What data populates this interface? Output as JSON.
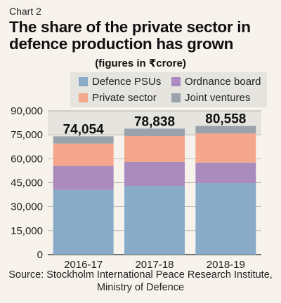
{
  "kicker": "Chart 2",
  "title": "The share of the private sector in defence production has grown",
  "subtitle": "(figures in ₹crore)",
  "source": "Source: Stockholm International Peace Research Institute, Ministry of Defence",
  "colors": {
    "background": "#f7f3ec",
    "plot_band": "#e6e4df",
    "defence_psus": "#8aabc8",
    "ordnance_board": "#a98bbd",
    "private_sector": "#f4a78c",
    "joint_ventures": "#9aa3ab"
  },
  "chart_data": {
    "type": "bar",
    "stacked": true,
    "categories": [
      "2016-17",
      "2017-18",
      "2018-19"
    ],
    "totals": [
      "74,054",
      "78,838",
      "80,558"
    ],
    "series": [
      {
        "name": "Defence PSUs",
        "color": "#8aabc8",
        "values": [
          40500,
          43000,
          44800
        ]
      },
      {
        "name": "Ordnance board",
        "color": "#a98bbd",
        "values": [
          15000,
          15000,
          12800
        ]
      },
      {
        "name": "Private sector",
        "color": "#f4a78c",
        "values": [
          14000,
          16200,
          18200
        ]
      },
      {
        "name": "Joint ventures",
        "color": "#9aa3ab",
        "values": [
          4554,
          4638,
          4758
        ]
      }
    ],
    "ylim": [
      0,
      90000
    ],
    "yticks": [
      0,
      15000,
      30000,
      45000,
      60000,
      75000,
      90000
    ],
    "ytick_labels": [
      "0",
      "15,000",
      "30,000",
      "45,000",
      "60,000",
      "75,000",
      "90,000"
    ],
    "grid": true,
    "legend_position": "top"
  }
}
